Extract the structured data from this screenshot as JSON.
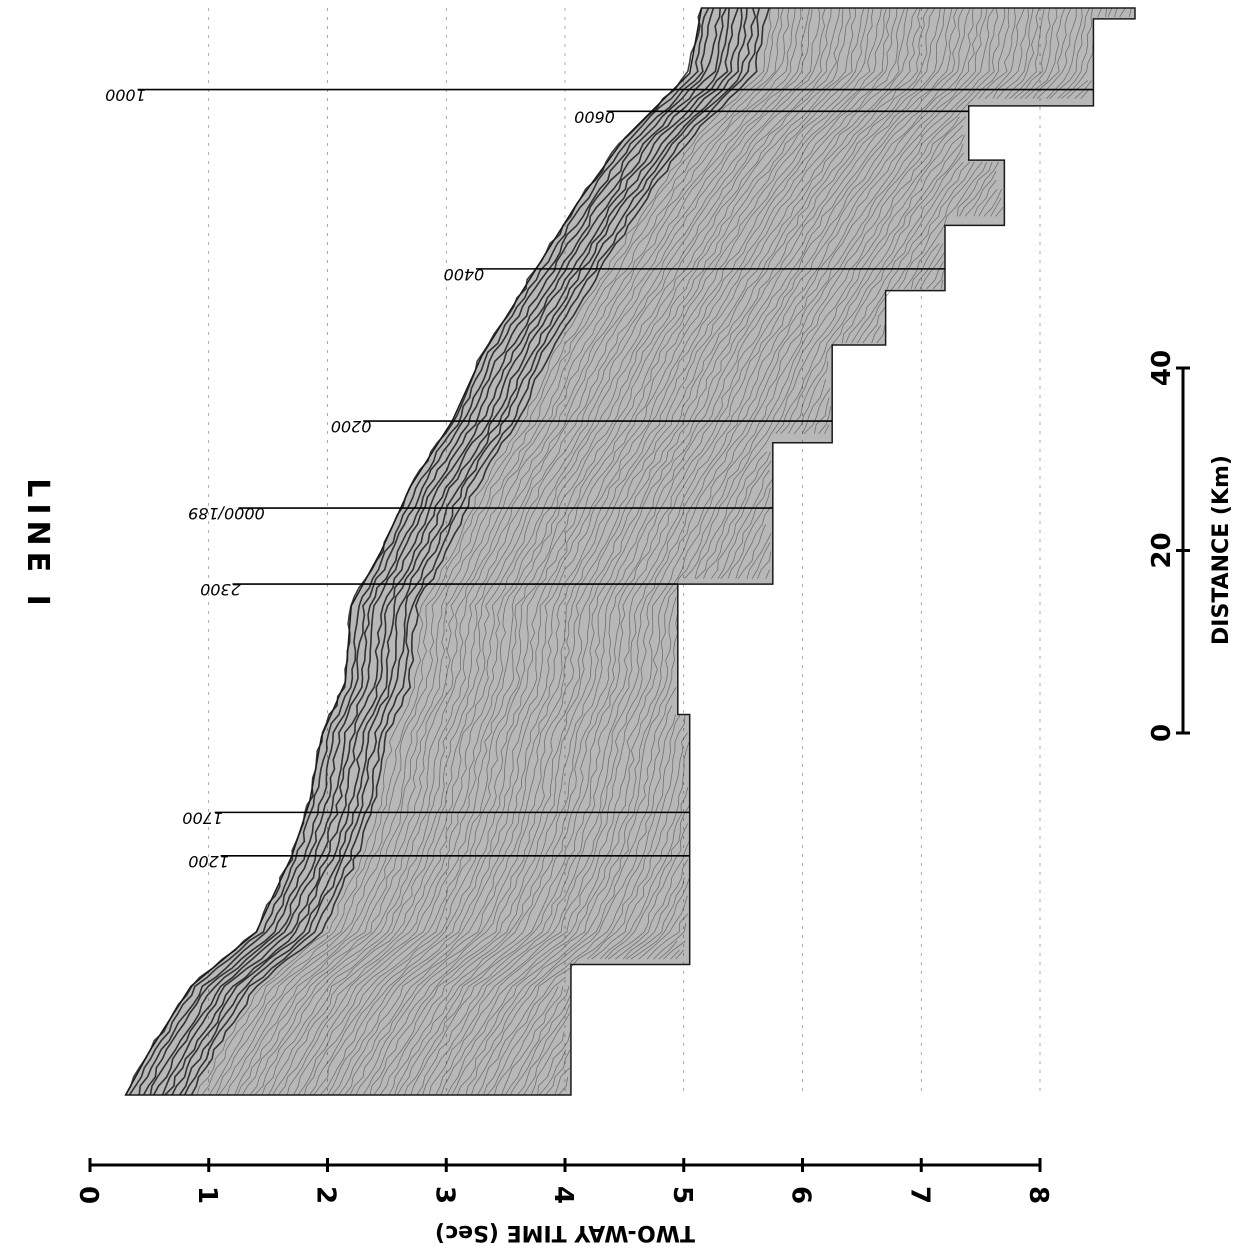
{
  "figure": {
    "title": "LINE I",
    "orientation": "rotated 90 degrees clockwise",
    "profile_color": "#1a1a1a"
  },
  "time_axis": {
    "label": "TWO-WAY TIME (Sec)",
    "ticks": [
      "0",
      "1",
      "2",
      "3",
      "4",
      "5",
      "6",
      "7",
      "8"
    ],
    "range": [
      0,
      8
    ]
  },
  "distance_axis": {
    "label": "DISTANCE (Km)",
    "ticks": [
      "0",
      "20",
      "40"
    ],
    "range": [
      0,
      40
    ]
  },
  "time_marks": [
    {
      "label": "1000",
      "time_sec": 0.4
    },
    {
      "label": "1200",
      "time_sec": 1.1
    },
    {
      "label": "1700",
      "time_sec": 1.05
    },
    {
      "label": "2300",
      "time_sec": 1.2
    },
    {
      "label": "0000/189",
      "time_sec": 1.25
    },
    {
      "label": "0200",
      "time_sec": 2.3
    },
    {
      "label": "0400",
      "time_sec": 3.25
    },
    {
      "label": "0600",
      "time_sec": 4.35
    }
  ]
}
